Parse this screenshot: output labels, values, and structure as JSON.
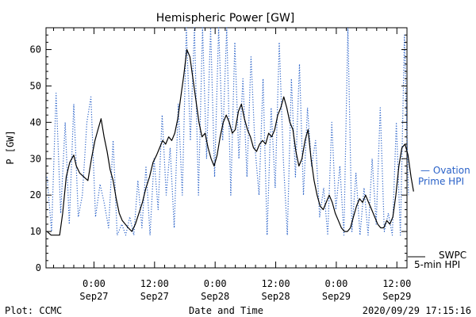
{
  "chart_data": {
    "type": "line",
    "title": "Hemispheric Power [GW]",
    "xlabel": "Date and Time",
    "ylabel": "P [GW]",
    "ylim": [
      0,
      66
    ],
    "xlim_hours": [
      -9.5,
      62
    ],
    "y_ticks": [
      0,
      10,
      20,
      30,
      40,
      50,
      60
    ],
    "x_ticks": [
      {
        "h": 0,
        "time": "0:00",
        "date": "Sep27"
      },
      {
        "h": 12,
        "time": "12:00",
        "date": "Sep27"
      },
      {
        "h": 24,
        "time": "0:00",
        "date": "Sep28"
      },
      {
        "h": 36,
        "time": "12:00",
        "date": "Sep28"
      },
      {
        "h": 48,
        "time": "0:00",
        "date": "Sep29"
      },
      {
        "h": 60,
        "time": "12:00",
        "date": "Sep29"
      }
    ],
    "series": [
      {
        "name": "Ovation Prime HPI",
        "color": "#2a62c8",
        "style": "dotted",
        "points": [
          [
            -9.3,
            25
          ],
          [
            -8.4,
            10
          ],
          [
            -7.5,
            48
          ],
          [
            -6.6,
            15
          ],
          [
            -5.7,
            40
          ],
          [
            -4.9,
            12
          ],
          [
            -4.0,
            45
          ],
          [
            -3.1,
            14
          ],
          [
            -2.3,
            20
          ],
          [
            -1.4,
            40
          ],
          [
            -0.6,
            47
          ],
          [
            0.3,
            14
          ],
          [
            1.2,
            23
          ],
          [
            2.0,
            18
          ],
          [
            2.9,
            11
          ],
          [
            3.8,
            35
          ],
          [
            4.6,
            9
          ],
          [
            5.5,
            12
          ],
          [
            6.3,
            9
          ],
          [
            7.1,
            14
          ],
          [
            7.9,
            9
          ],
          [
            8.7,
            24
          ],
          [
            9.5,
            11
          ],
          [
            10.3,
            28
          ],
          [
            11.1,
            9
          ],
          [
            11.9,
            30
          ],
          [
            12.7,
            16
          ],
          [
            13.5,
            42
          ],
          [
            14.3,
            20
          ],
          [
            15.1,
            33
          ],
          [
            15.9,
            11
          ],
          [
            16.7,
            45
          ],
          [
            17.5,
            20
          ],
          [
            18.3,
            66
          ],
          [
            19.1,
            35
          ],
          [
            19.9,
            66
          ],
          [
            20.7,
            20
          ],
          [
            21.5,
            66
          ],
          [
            22.3,
            30
          ],
          [
            23.1,
            66
          ],
          [
            23.9,
            25
          ],
          [
            24.7,
            66
          ],
          [
            25.5,
            35
          ],
          [
            26.3,
            66
          ],
          [
            27.1,
            20
          ],
          [
            27.9,
            62
          ],
          [
            28.7,
            30
          ],
          [
            29.5,
            52
          ],
          [
            30.3,
            25
          ],
          [
            31.1,
            58
          ],
          [
            31.9,
            33
          ],
          [
            32.7,
            20
          ],
          [
            33.5,
            52
          ],
          [
            34.3,
            9
          ],
          [
            35.1,
            44
          ],
          [
            35.9,
            22
          ],
          [
            36.7,
            62
          ],
          [
            37.5,
            30
          ],
          [
            38.3,
            9
          ],
          [
            39.1,
            52
          ],
          [
            39.9,
            25
          ],
          [
            40.7,
            56
          ],
          [
            41.5,
            20
          ],
          [
            42.3,
            44
          ],
          [
            43.1,
            28
          ],
          [
            43.9,
            35
          ],
          [
            44.7,
            14
          ],
          [
            45.5,
            22
          ],
          [
            46.3,
            9
          ],
          [
            47.1,
            40
          ],
          [
            47.9,
            16
          ],
          [
            48.7,
            28
          ],
          [
            49.5,
            9
          ],
          [
            50.3,
            66
          ],
          [
            51.1,
            10
          ],
          [
            51.9,
            26
          ],
          [
            52.7,
            9
          ],
          [
            53.5,
            22
          ],
          [
            54.3,
            9
          ],
          [
            55.1,
            30
          ],
          [
            55.9,
            12
          ],
          [
            56.7,
            44
          ],
          [
            57.5,
            10
          ],
          [
            58.3,
            15
          ],
          [
            59.1,
            9
          ],
          [
            59.9,
            40
          ],
          [
            60.7,
            9
          ],
          [
            61.5,
            64
          ],
          [
            62.3,
            20
          ]
        ]
      },
      {
        "name": "SWPC 5-min HPI",
        "color": "#000000",
        "style": "solid",
        "points": [
          [
            -9.3,
            10
          ],
          [
            -8.5,
            9
          ],
          [
            -7.5,
            9
          ],
          [
            -6.8,
            9
          ],
          [
            -6.2,
            15
          ],
          [
            -5.5,
            25
          ],
          [
            -4.8,
            29
          ],
          [
            -4.0,
            31
          ],
          [
            -3.5,
            28
          ],
          [
            -2.8,
            26
          ],
          [
            -2.0,
            25
          ],
          [
            -1.2,
            24
          ],
          [
            -0.5,
            30
          ],
          [
            0.2,
            35
          ],
          [
            0.8,
            38
          ],
          [
            1.4,
            41
          ],
          [
            2.0,
            36
          ],
          [
            2.6,
            32
          ],
          [
            3.2,
            27
          ],
          [
            3.8,
            24
          ],
          [
            4.4,
            19
          ],
          [
            5.0,
            15
          ],
          [
            5.6,
            13
          ],
          [
            6.2,
            12
          ],
          [
            6.8,
            11
          ],
          [
            7.5,
            10
          ],
          [
            8.2,
            12
          ],
          [
            8.9,
            15
          ],
          [
            9.6,
            18
          ],
          [
            10.3,
            22
          ],
          [
            11.0,
            25
          ],
          [
            11.7,
            29
          ],
          [
            12.4,
            31
          ],
          [
            13.0,
            33
          ],
          [
            13.6,
            35
          ],
          [
            14.2,
            34
          ],
          [
            14.8,
            36
          ],
          [
            15.4,
            35
          ],
          [
            16.0,
            37
          ],
          [
            16.6,
            41
          ],
          [
            17.2,
            47
          ],
          [
            17.8,
            53
          ],
          [
            18.4,
            60
          ],
          [
            19.0,
            58
          ],
          [
            19.6,
            52
          ],
          [
            20.2,
            46
          ],
          [
            20.8,
            40
          ],
          [
            21.4,
            36
          ],
          [
            22.0,
            37
          ],
          [
            22.6,
            33
          ],
          [
            23.2,
            30
          ],
          [
            23.8,
            28
          ],
          [
            24.4,
            31
          ],
          [
            25.0,
            36
          ],
          [
            25.6,
            40
          ],
          [
            26.2,
            42
          ],
          [
            26.8,
            40
          ],
          [
            27.4,
            37
          ],
          [
            28.0,
            38
          ],
          [
            28.6,
            43
          ],
          [
            29.2,
            45
          ],
          [
            29.8,
            41
          ],
          [
            30.4,
            38
          ],
          [
            31.0,
            36
          ],
          [
            31.6,
            33
          ],
          [
            32.2,
            32
          ],
          [
            32.8,
            34
          ],
          [
            33.4,
            35
          ],
          [
            34.0,
            34
          ],
          [
            34.6,
            37
          ],
          [
            35.2,
            36
          ],
          [
            35.8,
            38
          ],
          [
            36.4,
            42
          ],
          [
            37.0,
            44
          ],
          [
            37.6,
            47
          ],
          [
            38.2,
            44
          ],
          [
            38.8,
            40
          ],
          [
            39.4,
            38
          ],
          [
            40.0,
            32
          ],
          [
            40.6,
            28
          ],
          [
            41.2,
            30
          ],
          [
            41.8,
            35
          ],
          [
            42.4,
            38
          ],
          [
            43.0,
            30
          ],
          [
            43.6,
            24
          ],
          [
            44.2,
            20
          ],
          [
            44.8,
            17
          ],
          [
            45.4,
            16
          ],
          [
            46.0,
            18
          ],
          [
            46.6,
            20
          ],
          [
            47.2,
            18
          ],
          [
            47.8,
            15
          ],
          [
            48.4,
            13
          ],
          [
            49.0,
            11
          ],
          [
            49.6,
            10
          ],
          [
            50.2,
            10
          ],
          [
            50.8,
            11
          ],
          [
            51.4,
            14
          ],
          [
            52.0,
            17
          ],
          [
            52.6,
            19
          ],
          [
            53.2,
            18
          ],
          [
            53.8,
            20
          ],
          [
            54.4,
            18
          ],
          [
            55.0,
            16
          ],
          [
            55.6,
            14
          ],
          [
            56.2,
            12
          ],
          [
            56.8,
            11
          ],
          [
            57.4,
            11
          ],
          [
            58.0,
            13
          ],
          [
            58.6,
            12
          ],
          [
            59.2,
            14
          ],
          [
            59.8,
            20
          ],
          [
            60.4,
            28
          ],
          [
            61.0,
            33
          ],
          [
            61.6,
            34
          ],
          [
            62.2,
            31
          ],
          [
            62.8,
            25
          ],
          [
            63.3,
            21
          ]
        ]
      }
    ],
    "legend": {
      "ovation_line1": "— Ovation",
      "ovation_line2": "Prime HPI",
      "swpc_line1": "SWPC",
      "swpc_line2": "5-min HPI"
    },
    "footer_left": "Plot: CCMC",
    "footer_right": "2020/09/29 17:15:16"
  }
}
